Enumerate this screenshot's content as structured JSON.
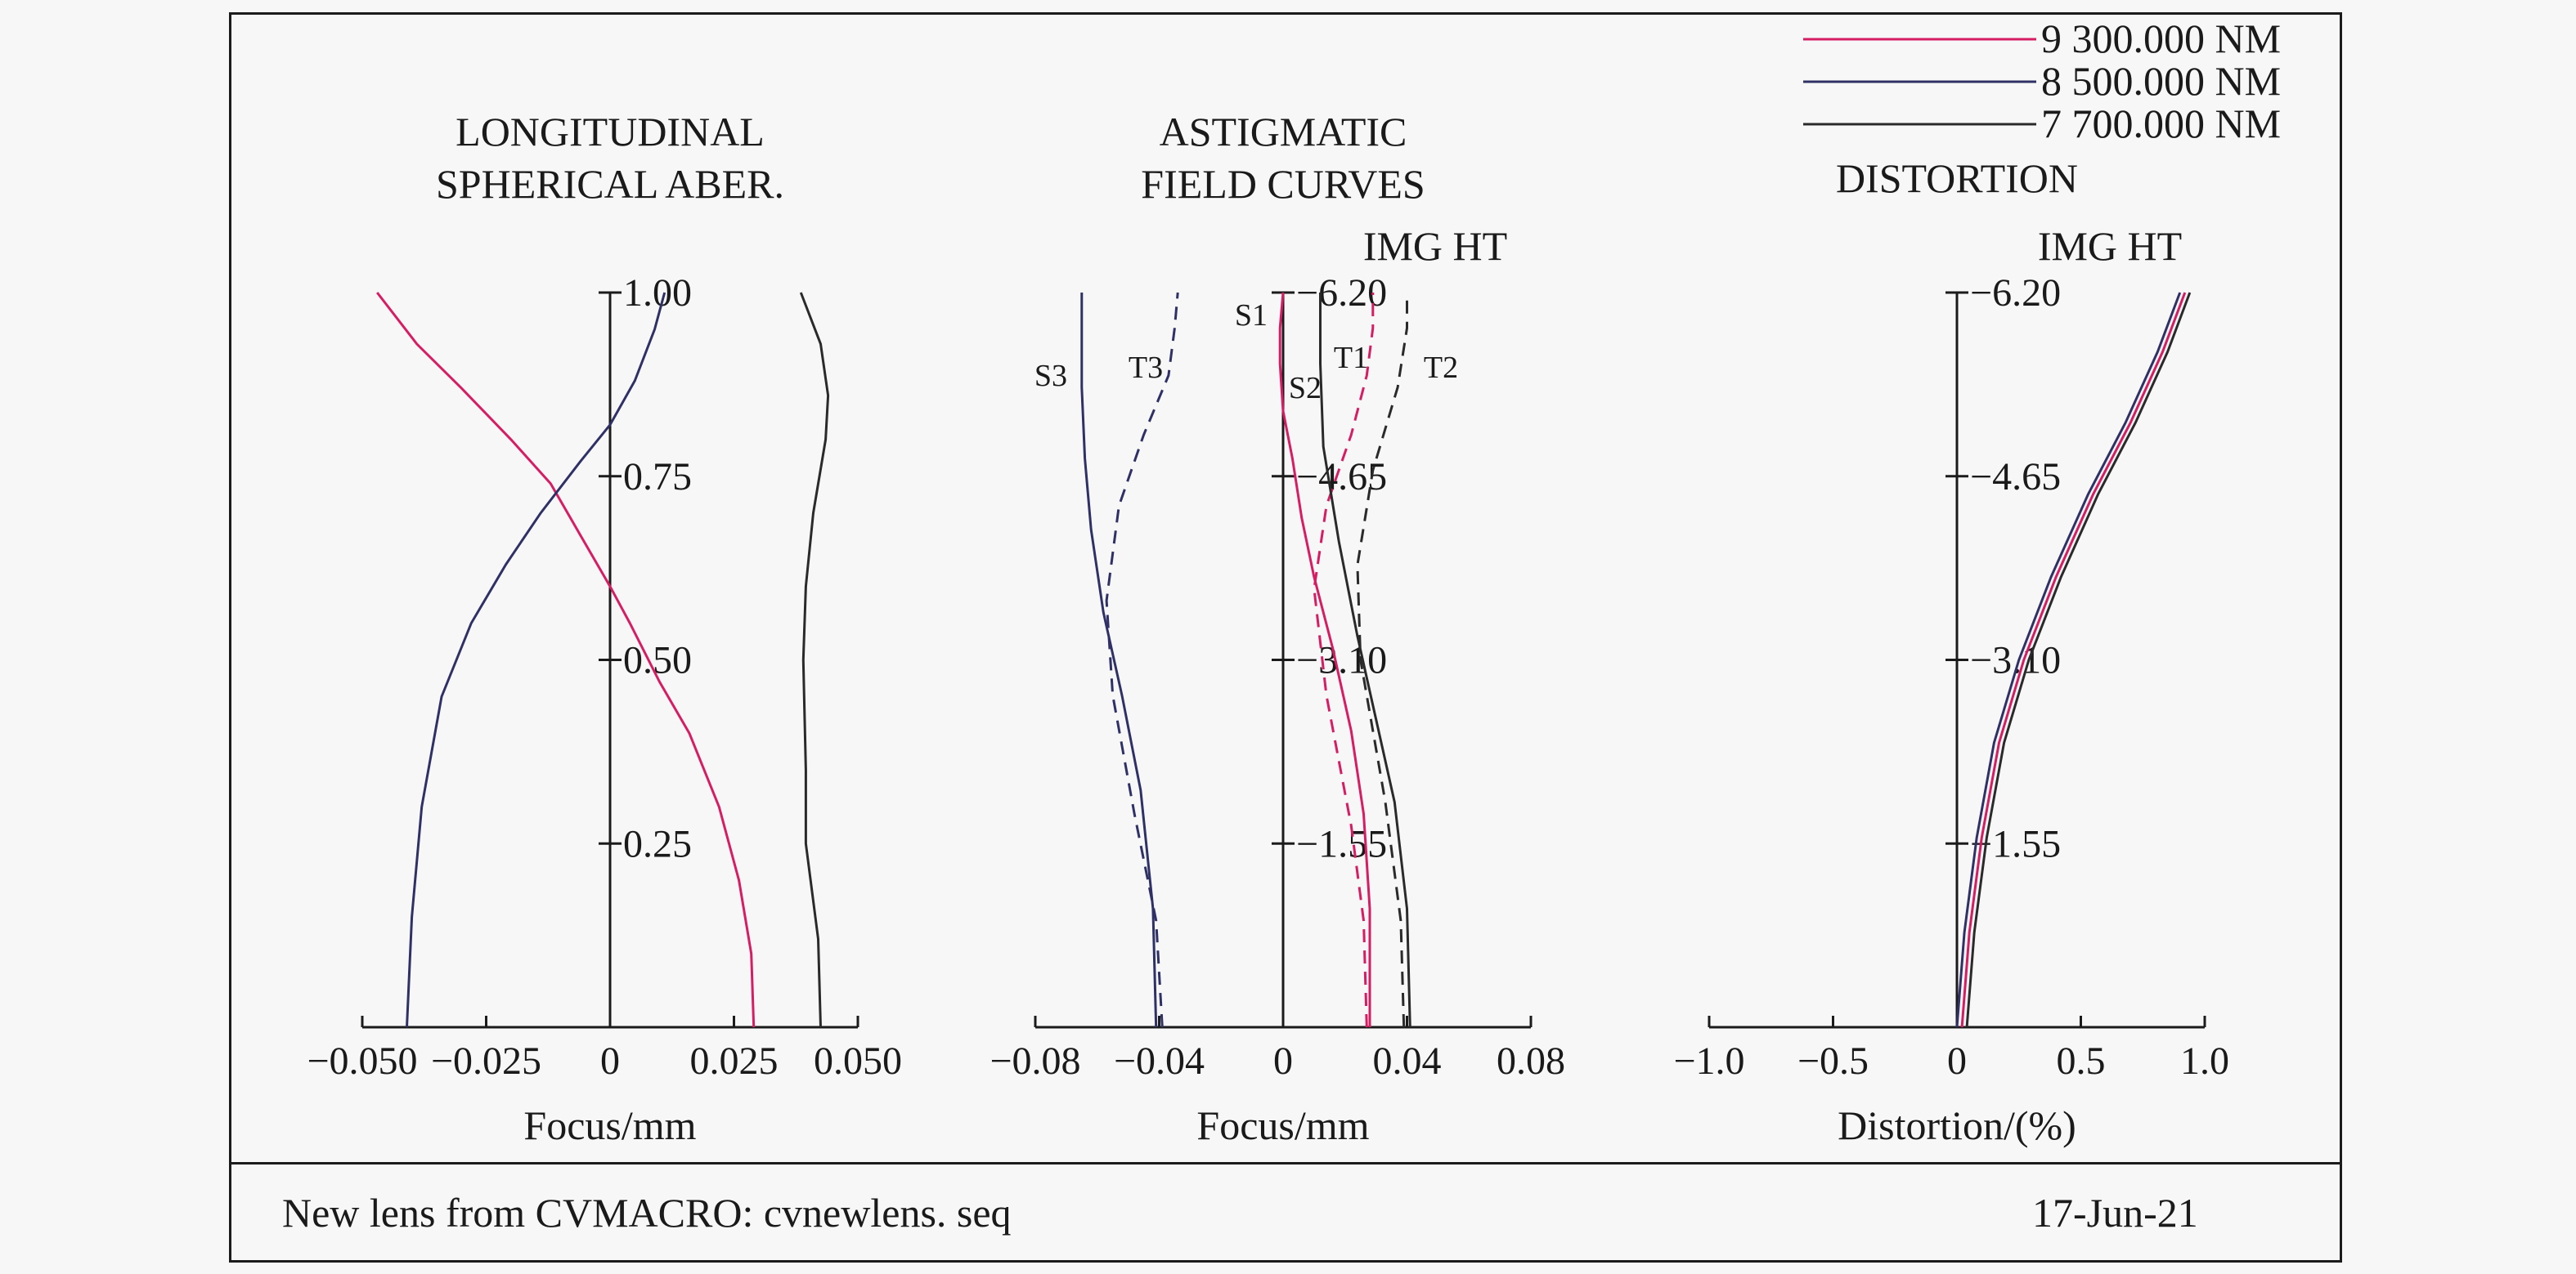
{
  "chart_data": [
    {
      "type": "line",
      "title": "LONGITUDINAL\nSPHERICAL ABER.",
      "xlabel": "Focus/mm",
      "xlim": [
        -0.05,
        0.05
      ],
      "xticks": [
        "−0.050",
        "−0.025",
        "0",
        "0.025",
        "0.050"
      ],
      "ylim": [
        0,
        1
      ],
      "yticks": [
        "0.25",
        "0.50",
        "0.75",
        "1.00"
      ],
      "series": [
        {
          "name": "9 300.000 NM",
          "color": "#d61d63",
          "x": [
            0.029,
            0.0285,
            0.026,
            0.022,
            0.016,
            0.01,
            0.004,
            0.0,
            -0.006,
            -0.012,
            -0.02,
            -0.03,
            -0.039,
            -0.047
          ],
          "y": [
            0.0,
            0.1,
            0.2,
            0.3,
            0.4,
            0.47,
            0.55,
            0.6,
            0.67,
            0.74,
            0.8,
            0.87,
            0.93,
            1.0
          ]
        },
        {
          "name": "8 500.000 NM",
          "color": "#2f3166",
          "x": [
            -0.041,
            -0.04,
            -0.038,
            -0.034,
            -0.028,
            -0.021,
            -0.014,
            -0.006,
            0.0,
            0.005,
            0.009,
            0.011
          ],
          "y": [
            0.0,
            0.15,
            0.3,
            0.45,
            0.55,
            0.63,
            0.7,
            0.77,
            0.82,
            0.88,
            0.95,
            1.0
          ]
        },
        {
          "name": "7 700.000 NM",
          "color": "#2a2a2a",
          "x": [
            0.0425,
            0.042,
            0.0395,
            0.0395,
            0.039,
            0.0395,
            0.041,
            0.0435,
            0.044,
            0.0425,
            0.0385
          ],
          "y": [
            0.0,
            0.12,
            0.25,
            0.35,
            0.5,
            0.6,
            0.7,
            0.8,
            0.86,
            0.93,
            1.0
          ]
        }
      ]
    },
    {
      "type": "line",
      "title": "ASTIGMATIC\nFIELD CURVES",
      "xlabel": "Focus/mm",
      "ylabel": "IMG HT",
      "xlim": [
        -0.08,
        0.08
      ],
      "xticks": [
        "−0.08",
        "−0.04",
        "0",
        "0.04",
        "0.08"
      ],
      "ylim": [
        0,
        6.2
      ],
      "yticks": [
        "1.55",
        "3.10",
        "4.65",
        "6.20"
      ],
      "annotations": [
        "S1",
        "T1",
        "S2",
        "T2",
        "S3",
        "T3"
      ],
      "series": [
        {
          "name": "S1",
          "color": "#d61d63",
          "dash": false,
          "x": [
            0.028,
            0.028,
            0.026,
            0.022,
            0.016,
            0.01,
            0.006,
            0.003,
            0.0,
            -0.001,
            -0.001,
            0.0
          ],
          "y": [
            0.0,
            1.0,
            1.8,
            2.5,
            3.2,
            3.8,
            4.3,
            4.8,
            5.2,
            5.6,
            5.9,
            6.2
          ]
        },
        {
          "name": "T1",
          "color": "#d61d63",
          "dash": true,
          "x": [
            0.027,
            0.026,
            0.022,
            0.014,
            0.01,
            0.014,
            0.022,
            0.027,
            0.029,
            0.029
          ],
          "y": [
            0.0,
            0.9,
            1.7,
            2.8,
            3.7,
            4.4,
            5.0,
            5.5,
            5.9,
            6.2
          ]
        },
        {
          "name": "S2",
          "color": "#2a2a2a",
          "dash": false,
          "x": [
            0.041,
            0.04,
            0.036,
            0.03,
            0.024,
            0.018,
            0.013,
            0.012,
            0.012
          ],
          "y": [
            0.0,
            1.0,
            1.9,
            2.6,
            3.3,
            4.1,
            4.9,
            5.6,
            6.2
          ]
        },
        {
          "name": "T2",
          "color": "#2a2a2a",
          "dash": true,
          "x": [
            0.039,
            0.038,
            0.033,
            0.025,
            0.024,
            0.029,
            0.037,
            0.04,
            0.04
          ],
          "y": [
            0.0,
            0.9,
            1.9,
            3.1,
            3.9,
            4.7,
            5.4,
            5.9,
            6.2
          ]
        },
        {
          "name": "S3",
          "color": "#2f3166",
          "dash": false,
          "x": [
            -0.041,
            -0.042,
            -0.046,
            -0.052,
            -0.058,
            -0.062,
            -0.064,
            -0.065,
            -0.065,
            -0.065
          ],
          "y": [
            0.0,
            1.0,
            2.0,
            2.8,
            3.5,
            4.2,
            4.8,
            5.4,
            5.9,
            6.2
          ]
        },
        {
          "name": "T3",
          "color": "#2f3166",
          "dash": true,
          "x": [
            -0.039,
            -0.041,
            -0.048,
            -0.055,
            -0.057,
            -0.053,
            -0.045,
            -0.037,
            -0.035,
            -0.034
          ],
          "y": [
            0.0,
            0.9,
            1.8,
            2.8,
            3.6,
            4.4,
            5.0,
            5.5,
            5.9,
            6.2
          ]
        }
      ]
    },
    {
      "type": "line",
      "title": "DISTORTION",
      "xlabel": "Distortion/(%)",
      "ylabel": "IMG HT",
      "xlim": [
        -1.0,
        1.0
      ],
      "xticks": [
        "−1.0",
        "−0.5",
        "0",
        "0.5",
        "1.0"
      ],
      "ylim": [
        0,
        6.2
      ],
      "yticks": [
        "1.55",
        "3.10",
        "4.65",
        "6.20"
      ],
      "series": [
        {
          "name": "9 300.000 NM",
          "color": "#d61d63",
          "x": [
            0.02,
            0.05,
            0.1,
            0.17,
            0.27,
            0.4,
            0.55,
            0.7,
            0.83,
            0.92
          ],
          "y": [
            0.0,
            0.8,
            1.6,
            2.4,
            3.1,
            3.8,
            4.5,
            5.1,
            5.7,
            6.2
          ]
        },
        {
          "name": "8 500.000 NM",
          "color": "#2f3166",
          "x": [
            0.0,
            0.03,
            0.08,
            0.15,
            0.25,
            0.38,
            0.53,
            0.68,
            0.81,
            0.9
          ],
          "y": [
            0.0,
            0.8,
            1.6,
            2.4,
            3.1,
            3.8,
            4.5,
            5.1,
            5.7,
            6.2
          ]
        },
        {
          "name": "7 700.000 NM",
          "color": "#2a2a2a",
          "x": [
            0.04,
            0.07,
            0.12,
            0.19,
            0.29,
            0.42,
            0.57,
            0.72,
            0.85,
            0.94
          ],
          "y": [
            0.0,
            0.8,
            1.6,
            2.4,
            3.1,
            3.8,
            4.5,
            5.1,
            5.7,
            6.2
          ]
        }
      ]
    }
  ],
  "legend": {
    "items": [
      {
        "label": "9 300.000 NM",
        "color": "#d61d63"
      },
      {
        "label": "8 500.000 NM",
        "color": "#2f3166"
      },
      {
        "label": "7 700.000 NM",
        "color": "#2a2a2a"
      }
    ]
  },
  "footer": {
    "left_text": "New lens from CVMACRO: cvnewlens. seq",
    "right_text": "17-Jun-21"
  }
}
